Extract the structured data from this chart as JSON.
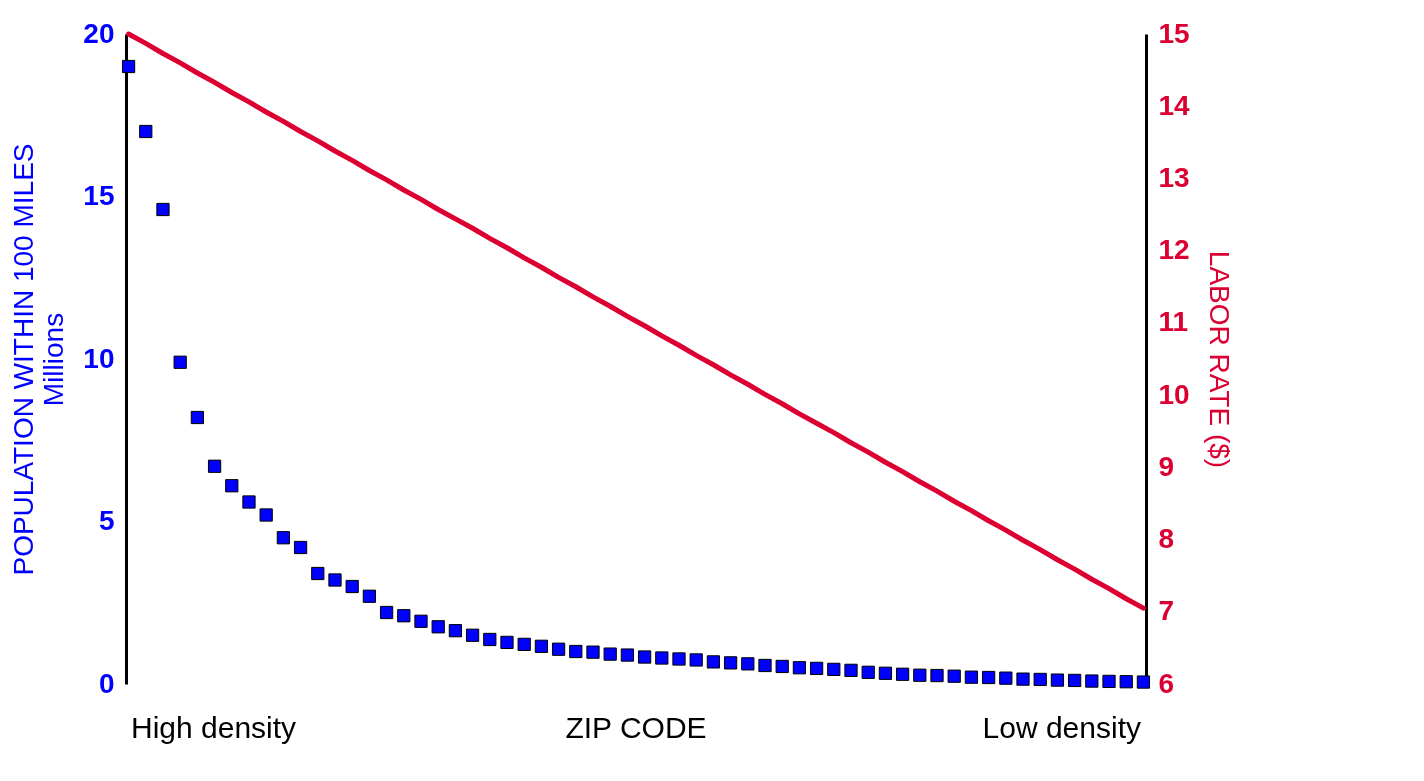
{
  "chart_data": {
    "type": "scatter",
    "xlabel": "ZIP CODE",
    "ylabel": "POPULATION WITHIN 100 MILES\nMillions",
    "y2label": "LABOR RATE ($)",
    "categories": [
      null,
      null,
      null,
      null,
      null,
      null,
      null,
      null,
      null,
      null,
      null,
      null,
      null,
      null,
      null,
      null,
      null,
      null,
      null,
      null,
      null,
      null,
      null,
      null,
      null,
      null,
      null,
      null,
      null,
      null,
      null,
      null,
      null,
      null,
      null,
      null,
      null,
      null,
      null,
      null,
      null,
      null,
      null,
      null,
      null,
      null,
      null,
      null,
      null,
      null,
      null,
      null,
      null,
      null,
      null,
      null,
      null,
      null,
      null,
      null
    ],
    "series": [
      {
        "marker": "square",
        "color": "#0000ff",
        "values": [
          19.0,
          17.0,
          14.6,
          9.9,
          8.2,
          6.7,
          6.1,
          5.6,
          5.2,
          4.5,
          4.2,
          3.4,
          3.2,
          3.0,
          2.7,
          2.2,
          2.1,
          1.93,
          1.76,
          1.64,
          1.5,
          1.37,
          1.28,
          1.22,
          1.16,
          1.07,
          1.0,
          0.98,
          0.92,
          0.89,
          0.83,
          0.8,
          0.77,
          0.74,
          0.68,
          0.65,
          0.62,
          0.57,
          0.54,
          0.5,
          0.48,
          0.45,
          0.42,
          0.36,
          0.33,
          0.3,
          0.27,
          0.26,
          0.24,
          0.21,
          0.2,
          0.18,
          0.15,
          0.14,
          0.12,
          0.11,
          0.09,
          0.08,
          0.07,
          0.06
        ]
      },
      {
        "type": "line",
        "axis": "y2",
        "color": "#dc0032",
        "values": [
          15.0,
          14.87,
          14.73,
          14.6,
          14.46,
          14.33,
          14.19,
          14.06,
          13.92,
          13.79,
          13.65,
          13.52,
          13.38,
          13.25,
          13.11,
          12.98,
          12.84,
          12.71,
          12.57,
          12.44,
          12.31,
          12.17,
          12.04,
          11.9,
          11.77,
          11.63,
          11.5,
          11.36,
          11.23,
          11.09,
          10.96,
          10.82,
          10.69,
          10.55,
          10.42,
          10.28,
          10.15,
          10.01,
          9.88,
          9.74,
          9.61,
          9.48,
          9.34,
          9.21,
          9.07,
          8.94,
          8.8,
          8.67,
          8.53,
          8.4,
          8.26,
          8.13,
          7.99,
          7.86,
          7.72,
          7.59,
          7.45,
          7.32,
          7.18,
          7.05
        ]
      }
    ],
    "ylim": [
      0,
      20
    ],
    "yticks": [
      0,
      5,
      10,
      15,
      20
    ],
    "y2lim": [
      6,
      15
    ],
    "y2ticks": [
      6,
      7,
      8,
      9,
      10,
      11,
      12,
      13,
      14,
      15
    ],
    "grid": false,
    "annotations": [
      "High density",
      "Low density"
    ]
  }
}
